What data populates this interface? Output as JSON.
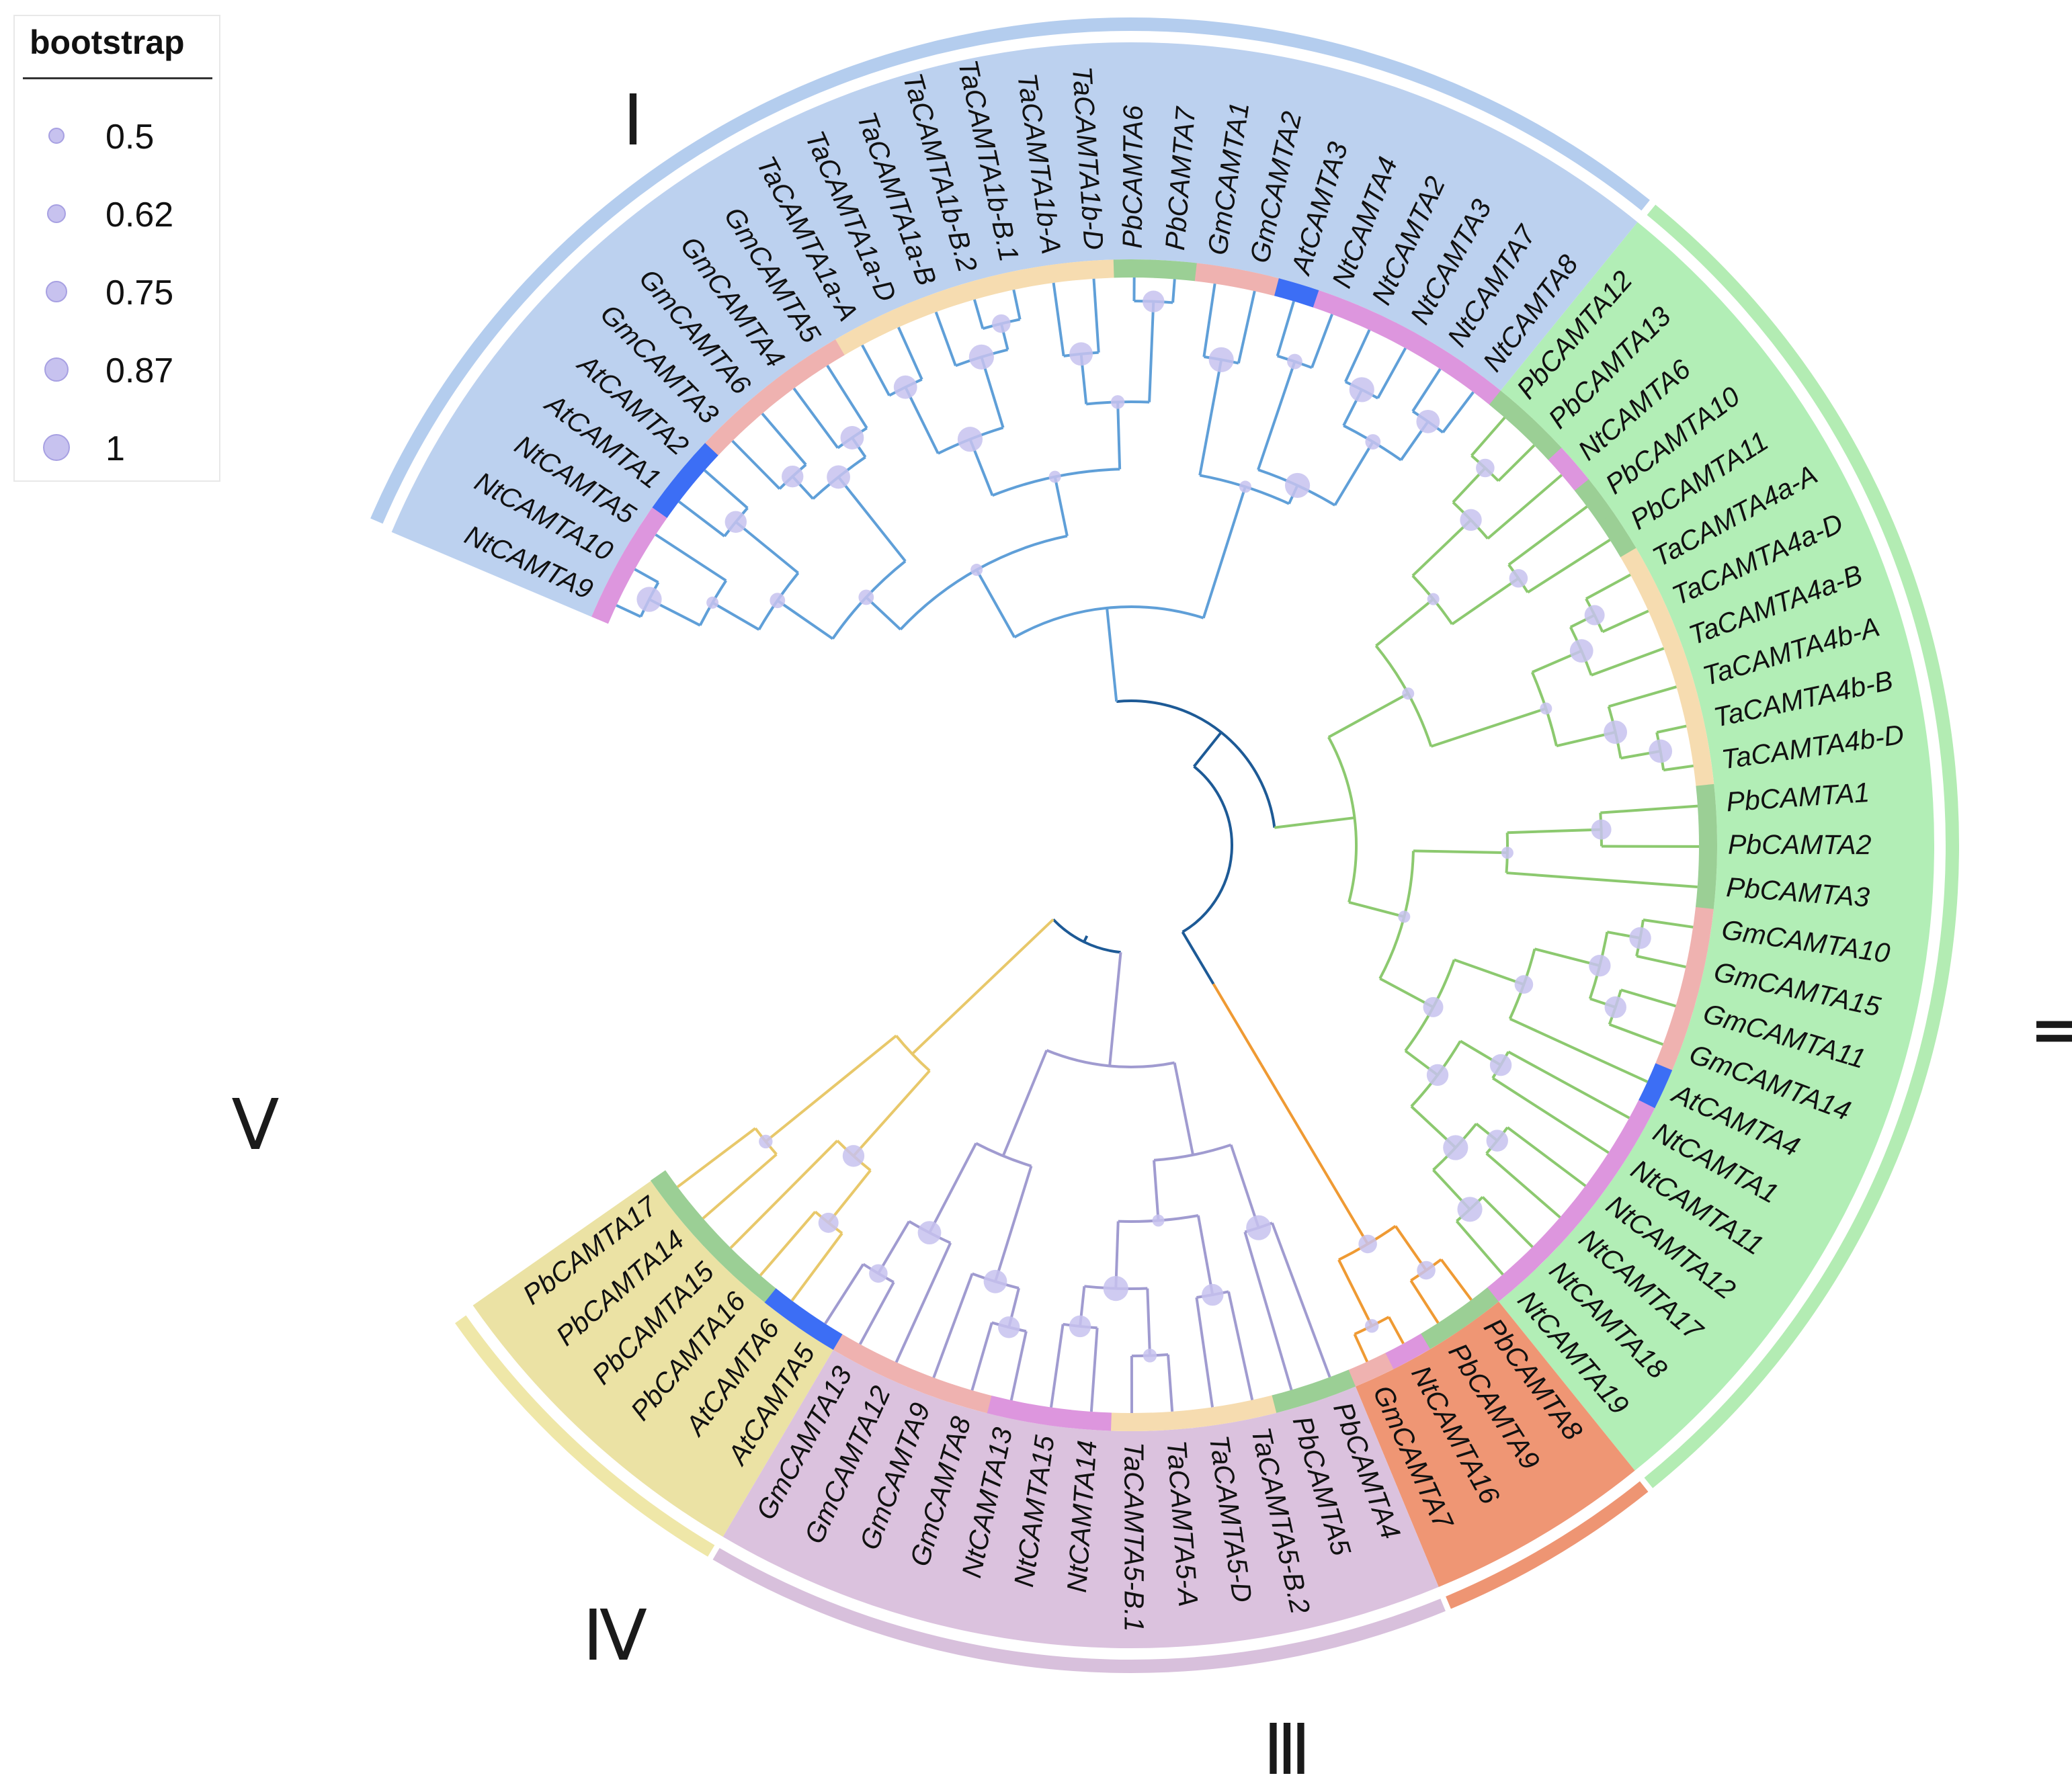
{
  "legend": {
    "title": "bootstrap",
    "items": [
      {
        "label": "0.5",
        "value": 0.5
      },
      {
        "label": "0.62",
        "value": 0.62
      },
      {
        "label": "0.75",
        "value": 0.75
      },
      {
        "label": "0.87",
        "value": 0.87
      },
      {
        "label": "1",
        "value": 1
      }
    ]
  },
  "colors": {
    "clade_I": "#bcd1ef",
    "clade_I_ring": "#b4cdee",
    "clade_II": "#b2eeb6",
    "clade_II_ring": "#b3ecb3",
    "clade_III": "#ef9674",
    "clade_III_ring": "#ee9573",
    "clade_IV": "#dbc2de",
    "clade_IV_ring": "#d8c0dc",
    "clade_V": "#ebe2a4",
    "clade_V_ring": "#efe7a8",
    "branch_I": "#5f9fd8",
    "branch_II": "#8cc96f",
    "branch_III": "#ef9a33",
    "branch_IV": "#a09bd0",
    "branch_V": "#e8c86a",
    "branch_root": "#1d5a96",
    "species_Ta": "#f6dcb0",
    "species_Gm": "#efb2b0",
    "species_At": "#3c6ef5",
    "species_Nt": "#dd96de",
    "species_Pb": "#9bcf95",
    "bootstrap_dot": "#c7c2ef"
  },
  "clades": [
    {
      "numeral": "Ⅰ",
      "name": "I"
    },
    {
      "numeral": "Ⅱ",
      "name": "II"
    },
    {
      "numeral": "Ⅲ",
      "name": "III"
    },
    {
      "numeral": "Ⅳ",
      "name": "IV"
    },
    {
      "numeral": "Ⅴ",
      "name": "V"
    }
  ],
  "leaves": [
    {
      "name": "NtCAMTA9",
      "species": "Nt",
      "clade": "I"
    },
    {
      "name": "NtCAMTA10",
      "species": "Nt",
      "clade": "I"
    },
    {
      "name": "NtCAMTA5",
      "species": "Nt",
      "clade": "I"
    },
    {
      "name": "AtCAMTA1",
      "species": "At",
      "clade": "I"
    },
    {
      "name": "AtCAMTA2",
      "species": "At",
      "clade": "I"
    },
    {
      "name": "GmCAMTA3",
      "species": "Gm",
      "clade": "I"
    },
    {
      "name": "GmCAMTA6",
      "species": "Gm",
      "clade": "I"
    },
    {
      "name": "GmCAMTA4",
      "species": "Gm",
      "clade": "I"
    },
    {
      "name": "GmCAMTA5",
      "species": "Gm",
      "clade": "I"
    },
    {
      "name": "TaCAMTA1a-A",
      "species": "Ta",
      "clade": "I"
    },
    {
      "name": "TaCAMTA1a-D",
      "species": "Ta",
      "clade": "I"
    },
    {
      "name": "TaCAMTA1a-B",
      "species": "Ta",
      "clade": "I"
    },
    {
      "name": "TaCAMTA1b-B.2",
      "species": "Ta",
      "clade": "I"
    },
    {
      "name": "TaCAMTA1b-B.1",
      "species": "Ta",
      "clade": "I"
    },
    {
      "name": "TaCAMTA1b-A",
      "species": "Ta",
      "clade": "I"
    },
    {
      "name": "TaCAMTA1b-D",
      "species": "Ta",
      "clade": "I"
    },
    {
      "name": "PbCAMTA6",
      "species": "Pb",
      "clade": "I"
    },
    {
      "name": "PbCAMTA7",
      "species": "Pb",
      "clade": "I"
    },
    {
      "name": "GmCAMTA1",
      "species": "Gm",
      "clade": "I"
    },
    {
      "name": "GmCAMTA2",
      "species": "Gm",
      "clade": "I"
    },
    {
      "name": "AtCAMTA3",
      "species": "At",
      "clade": "I"
    },
    {
      "name": "NtCAMTA4",
      "species": "Nt",
      "clade": "I"
    },
    {
      "name": "NtCAMTA2",
      "species": "Nt",
      "clade": "I"
    },
    {
      "name": "NtCAMTA3",
      "species": "Nt",
      "clade": "I"
    },
    {
      "name": "NtCAMTA7",
      "species": "Nt",
      "clade": "I"
    },
    {
      "name": "NtCAMTA8",
      "species": "Nt",
      "clade": "I"
    },
    {
      "name": "PbCAMTA12",
      "species": "Pb",
      "clade": "II"
    },
    {
      "name": "PbCAMTA13",
      "species": "Pb",
      "clade": "II"
    },
    {
      "name": "NtCAMTA6",
      "species": "Nt",
      "clade": "II"
    },
    {
      "name": "PbCAMTA10",
      "species": "Pb",
      "clade": "II"
    },
    {
      "name": "PbCAMTA11",
      "species": "Pb",
      "clade": "II"
    },
    {
      "name": "TaCAMTA4a-A",
      "species": "Ta",
      "clade": "II"
    },
    {
      "name": "TaCAMTA4a-D",
      "species": "Ta",
      "clade": "II"
    },
    {
      "name": "TaCAMTA4a-B",
      "species": "Ta",
      "clade": "II"
    },
    {
      "name": "TaCAMTA4b-A",
      "species": "Ta",
      "clade": "II"
    },
    {
      "name": "TaCAMTA4b-B",
      "species": "Ta",
      "clade": "II"
    },
    {
      "name": "TaCAMTA4b-D",
      "species": "Ta",
      "clade": "II"
    },
    {
      "name": "PbCAMTA1",
      "species": "Pb",
      "clade": "II"
    },
    {
      "name": "PbCAMTA2",
      "species": "Pb",
      "clade": "II"
    },
    {
      "name": "PbCAMTA3",
      "species": "Pb",
      "clade": "II"
    },
    {
      "name": "GmCAMTA10",
      "species": "Gm",
      "clade": "II"
    },
    {
      "name": "GmCAMTA15",
      "species": "Gm",
      "clade": "II"
    },
    {
      "name": "GmCAMTA11",
      "species": "Gm",
      "clade": "II"
    },
    {
      "name": "GmCAMTA14",
      "species": "Gm",
      "clade": "II"
    },
    {
      "name": "AtCAMTA4",
      "species": "At",
      "clade": "II"
    },
    {
      "name": "NtCAMTA1",
      "species": "Nt",
      "clade": "II"
    },
    {
      "name": "NtCAMTA11",
      "species": "Nt",
      "clade": "II"
    },
    {
      "name": "NtCAMTA12",
      "species": "Nt",
      "clade": "II"
    },
    {
      "name": "NtCAMTA17",
      "species": "Nt",
      "clade": "II"
    },
    {
      "name": "NtCAMTA18",
      "species": "Nt",
      "clade": "II"
    },
    {
      "name": "NtCAMTA19",
      "species": "Nt",
      "clade": "II"
    },
    {
      "name": "PbCAMTA8",
      "species": "Pb",
      "clade": "III"
    },
    {
      "name": "PbCAMTA9",
      "species": "Pb",
      "clade": "III"
    },
    {
      "name": "NtCAMTA16",
      "species": "Nt",
      "clade": "III"
    },
    {
      "name": "GmCAMTA7",
      "species": "Gm",
      "clade": "III"
    },
    {
      "name": "PbCAMTA4",
      "species": "Pb",
      "clade": "IV"
    },
    {
      "name": "PbCAMTA5",
      "species": "Pb",
      "clade": "IV"
    },
    {
      "name": "TaCAMTA5-B.2",
      "species": "Ta",
      "clade": "IV"
    },
    {
      "name": "TaCAMTA5-D",
      "species": "Ta",
      "clade": "IV"
    },
    {
      "name": "TaCAMTA5-A",
      "species": "Ta",
      "clade": "IV"
    },
    {
      "name": "TaCAMTA5-B.1",
      "species": "Ta",
      "clade": "IV"
    },
    {
      "name": "NtCAMTA14",
      "species": "Nt",
      "clade": "IV"
    },
    {
      "name": "NtCAMTA15",
      "species": "Nt",
      "clade": "IV"
    },
    {
      "name": "NtCAMTA13",
      "species": "Nt",
      "clade": "IV"
    },
    {
      "name": "GmCAMTA8",
      "species": "Gm",
      "clade": "IV"
    },
    {
      "name": "GmCAMTA9",
      "species": "Gm",
      "clade": "IV"
    },
    {
      "name": "GmCAMTA12",
      "species": "Gm",
      "clade": "IV"
    },
    {
      "name": "GmCAMTA13",
      "species": "Gm",
      "clade": "IV"
    },
    {
      "name": "AtCAMTA5",
      "species": "At",
      "clade": "V"
    },
    {
      "name": "AtCAMTA6",
      "species": "At",
      "clade": "V"
    },
    {
      "name": "PbCAMTA16",
      "species": "Pb",
      "clade": "V"
    },
    {
      "name": "PbCAMTA15",
      "species": "Pb",
      "clade": "V"
    },
    {
      "name": "PbCAMTA14",
      "species": "Pb",
      "clade": "V"
    },
    {
      "name": "PbCAMTA17",
      "species": "Pb",
      "clade": "V"
    }
  ]
}
